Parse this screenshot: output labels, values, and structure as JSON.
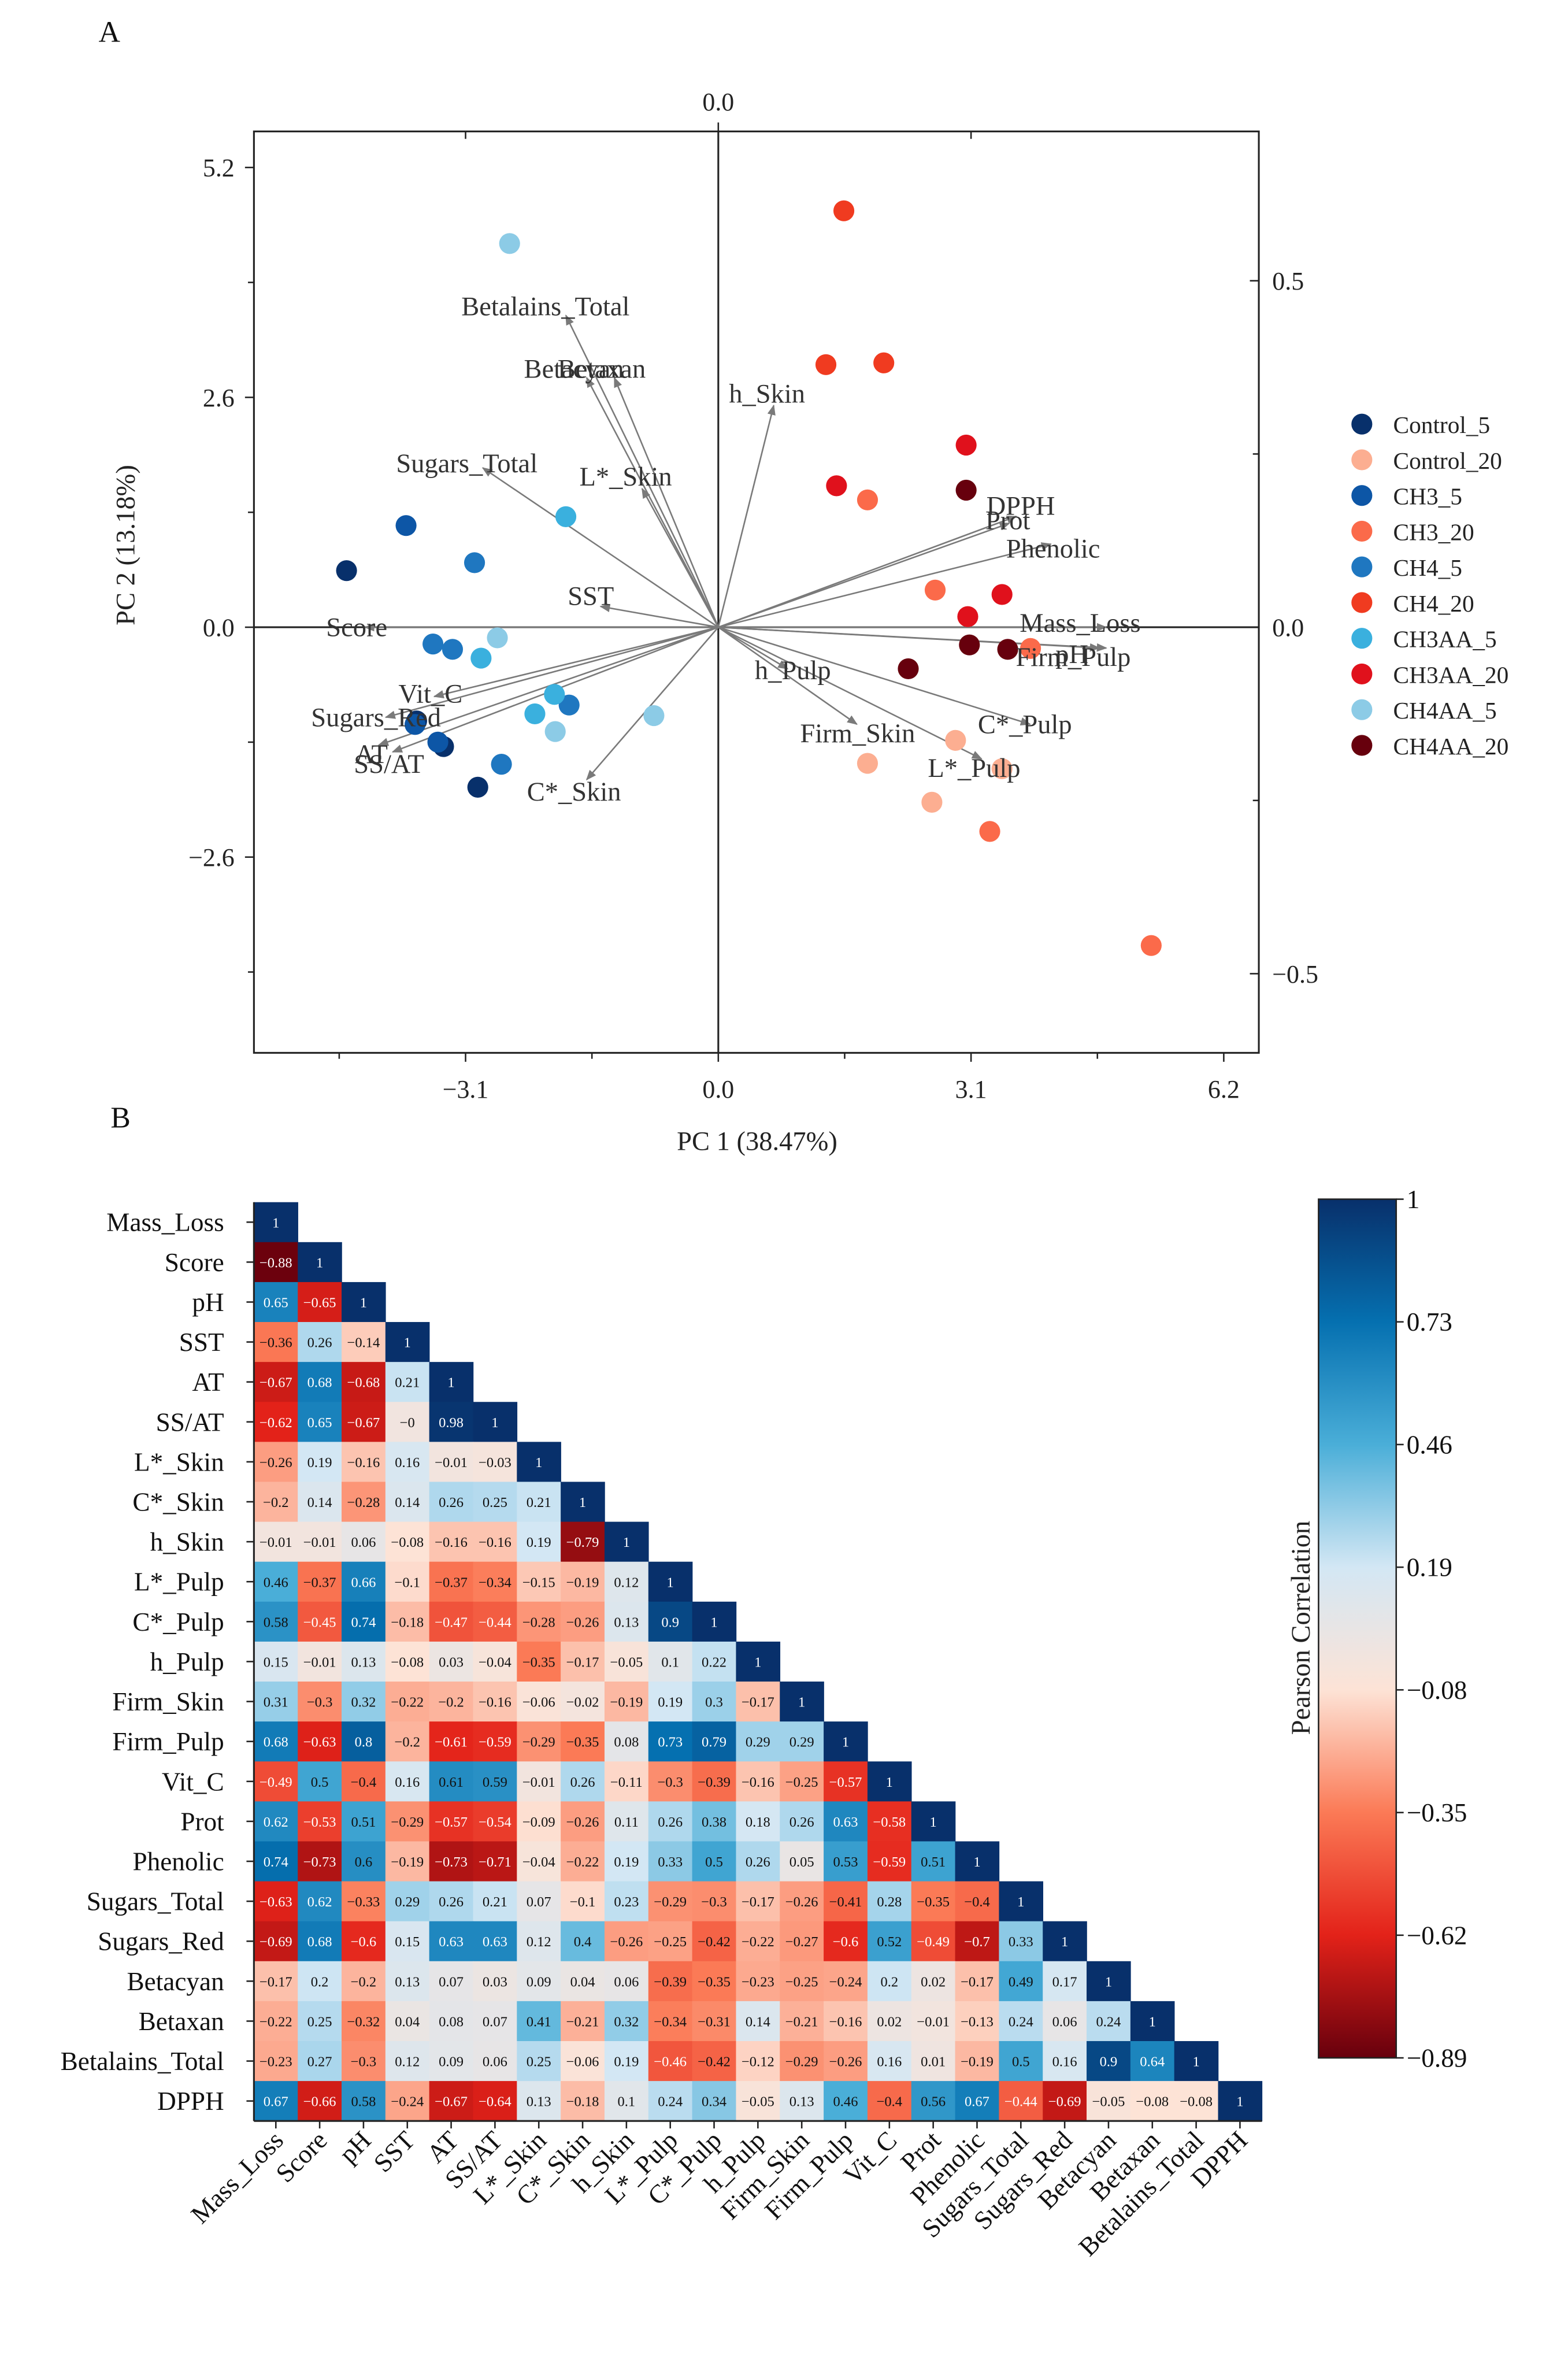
{
  "panel_a_label": "A",
  "panel_b_label": "B",
  "chart_data": [
    {
      "type": "scatter",
      "subtype": "pca-biplot",
      "xlabel": "PC 1 (38.47%)",
      "ylabel": "PC 2 (13.18%)",
      "xlim": [
        -5.7,
        6.6
      ],
      "ylim": [
        -4.85,
        5.6
      ],
      "x_ticks": [
        "-3.1",
        "0.0",
        "3.1",
        "6.2"
      ],
      "x_tick_values": [
        -3.1,
        0,
        3.1,
        6.2
      ],
      "y_ticks": [
        "5.2",
        "2.6",
        "0.0",
        "−2.6"
      ],
      "y_tick_values": [
        5.2,
        2.6,
        0,
        -2.6
      ],
      "top_ticks": [
        "0.0"
      ],
      "right_ticks": [
        "0.5",
        "0.0",
        "−0.5"
      ],
      "right_tick_values": [
        0.5,
        0,
        -0.5
      ],
      "legend_position": "right",
      "groups": [
        {
          "name": "Control_5",
          "color": "#08306b",
          "points": [
            [
              -4.56,
              0.64
            ],
            [
              -2.95,
              -1.81
            ],
            [
              -3.37,
              -1.35
            ],
            [
              -3.7,
              -1.06
            ]
          ]
        },
        {
          "name": "Control_20",
          "color": "#fcae91",
          "points": [
            [
              1.83,
              -1.54
            ],
            [
              2.62,
              -1.98
            ],
            [
              3.48,
              -1.6
            ],
            [
              2.91,
              -1.28
            ]
          ]
        },
        {
          "name": "CH3_5",
          "color": "#0d56a6",
          "points": [
            [
              -3.83,
              1.15
            ],
            [
              -3.72,
              -1.1
            ],
            [
              -3.44,
              -1.3
            ]
          ]
        },
        {
          "name": "CH3_20",
          "color": "#fb6a4a",
          "points": [
            [
              1.83,
              1.44
            ],
            [
              2.66,
              0.42
            ],
            [
              3.83,
              -0.24
            ],
            [
              3.33,
              -2.31
            ],
            [
              5.31,
              -3.6
            ]
          ]
        },
        {
          "name": "CH4_5",
          "color": "#1f77c0",
          "points": [
            [
              -2.99,
              0.73
            ],
            [
              -3.5,
              -0.19
            ],
            [
              -3.26,
              -0.25
            ],
            [
              -2.66,
              -1.55
            ],
            [
              -1.83,
              -0.88
            ]
          ]
        },
        {
          "name": "CH4_20",
          "color": "#f03b20",
          "points": [
            [
              1.54,
              4.71
            ],
            [
              1.32,
              2.97
            ],
            [
              2.03,
              2.99
            ]
          ]
        },
        {
          "name": "CH3AA_5",
          "color": "#3ab0de",
          "points": [
            [
              -1.87,
              1.25
            ],
            [
              -2.91,
              -0.35
            ],
            [
              -2.25,
              -0.98
            ],
            [
              -2.01,
              -0.76
            ]
          ]
        },
        {
          "name": "CH3AA_20",
          "color": "#e0111c",
          "points": [
            [
              3.04,
              2.06
            ],
            [
              1.45,
              1.6
            ],
            [
              3.06,
              0.12
            ],
            [
              3.48,
              0.37
            ]
          ]
        },
        {
          "name": "CH4AA_5",
          "color": "#8ccbe6",
          "points": [
            [
              -2.56,
              4.34
            ],
            [
              -2.71,
              -0.12
            ],
            [
              -2.0,
              -1.18
            ],
            [
              -0.79,
              -1.0
            ]
          ]
        },
        {
          "name": "CH4AA_20",
          "color": "#67000d",
          "points": [
            [
              3.04,
              1.55
            ],
            [
              2.33,
              -0.47
            ],
            [
              3.08,
              -0.2
            ],
            [
              3.55,
              -0.25
            ]
          ]
        }
      ],
      "loadings": [
        {
          "name": "Betalains_Total",
          "x": -0.22,
          "y": 0.45
        },
        {
          "name": "Betacyan",
          "x": -0.19,
          "y": 0.36
        },
        {
          "name": "Betaxan",
          "x": -0.15,
          "y": 0.36
        },
        {
          "name": "h_Skin",
          "x": 0.08,
          "y": 0.32
        },
        {
          "name": "Sugars_Total",
          "x": -0.34,
          "y": 0.23
        },
        {
          "name": "L*_Skin",
          "x": -0.11,
          "y": 0.2
        },
        {
          "name": "SST",
          "x": -0.17,
          "y": 0.03
        },
        {
          "name": "Score",
          "x": -0.51,
          "y": 0.0
        },
        {
          "name": "Vit_C",
          "x": -0.41,
          "y": -0.1
        },
        {
          "name": "Sugars_Red",
          "x": -0.48,
          "y": -0.13
        },
        {
          "name": "AT",
          "x": -0.49,
          "y": -0.17
        },
        {
          "name": "SS/AT",
          "x": -0.47,
          "y": -0.18
        },
        {
          "name": "C*_Skin",
          "x": -0.19,
          "y": -0.22
        },
        {
          "name": "h_Pulp",
          "x": 0.1,
          "y": -0.06
        },
        {
          "name": "Firm_Skin",
          "x": 0.2,
          "y": -0.14
        },
        {
          "name": "L*_Pulp",
          "x": 0.38,
          "y": -0.19
        },
        {
          "name": "C*_Pulp",
          "x": 0.45,
          "y": -0.14
        },
        {
          "name": "DPPH",
          "x": 0.43,
          "y": 0.16
        },
        {
          "name": "Prot",
          "x": 0.42,
          "y": 0.15
        },
        {
          "name": "Phenolic",
          "x": 0.48,
          "y": 0.12
        },
        {
          "name": "Mass_Loss",
          "x": 0.56,
          "y": 0.0
        },
        {
          "name": "Firm_Pulp",
          "x": 0.55,
          "y": -0.03
        },
        {
          "name": "pH",
          "x": 0.56,
          "y": -0.03
        }
      ]
    },
    {
      "type": "heatmap",
      "subtype": "lower-triangle correlation matrix",
      "colorbar_label": "Pearson Correlation",
      "colorbar_ticks": [
        "1",
        "0.73",
        "0.46",
        "0.19",
        "−0.08",
        "−0.35",
        "−0.62",
        "−0.89"
      ],
      "colorbar_range": [
        -0.89,
        1
      ],
      "colorscale": [
        "#67000d",
        "#e32219",
        "#fb7a56",
        "#fde3d6",
        "#d3e7f4",
        "#4aaed8",
        "#0570b0",
        "#08306b"
      ],
      "variables": [
        "Mass_Loss",
        "Score",
        "pH",
        "SST",
        "AT",
        "SS/AT",
        "L*_Skin",
        "C*_Skin",
        "h_Skin",
        "L*_Pulp",
        "C*_Pulp",
        "h_Pulp",
        "Firm_Skin",
        "Firm_Pulp",
        "Vit_C",
        "Prot",
        "Phenolic",
        "Sugars_Total",
        "Sugars_Red",
        "Betacyan",
        "Betaxan",
        "Betalains_Total",
        "DPPH"
      ],
      "matrix": [
        [
          1
        ],
        [
          -0.88,
          1
        ],
        [
          0.65,
          -0.65,
          1
        ],
        [
          -0.36,
          0.26,
          -0.14,
          1
        ],
        [
          -0.67,
          0.68,
          -0.68,
          0.21,
          1
        ],
        [
          -0.62,
          0.65,
          -0.67,
          0,
          0.98,
          1
        ],
        [
          -0.26,
          0.19,
          -0.16,
          0.16,
          -0.01,
          -0.03,
          1
        ],
        [
          -0.2,
          0.14,
          -0.28,
          0.14,
          0.26,
          0.25,
          0.21,
          1
        ],
        [
          -0.01,
          -0.01,
          0.06,
          -0.08,
          -0.16,
          -0.16,
          0.19,
          -0.79,
          1
        ],
        [
          0.46,
          -0.37,
          0.66,
          -0.1,
          -0.37,
          -0.34,
          -0.15,
          -0.19,
          0.12,
          1
        ],
        [
          0.58,
          -0.45,
          0.74,
          -0.18,
          -0.47,
          -0.44,
          -0.28,
          -0.26,
          0.13,
          0.9,
          1
        ],
        [
          0.15,
          -0.01,
          0.13,
          -0.08,
          0.03,
          -0.04,
          -0.35,
          -0.17,
          -0.05,
          0.1,
          0.22,
          1
        ],
        [
          0.31,
          -0.3,
          0.32,
          -0.22,
          -0.2,
          -0.16,
          -0.06,
          -0.02,
          -0.19,
          0.19,
          0.3,
          -0.17,
          1
        ],
        [
          0.68,
          -0.63,
          0.8,
          -0.2,
          -0.61,
          -0.59,
          -0.29,
          -0.35,
          0.08,
          0.73,
          0.79,
          0.29,
          0.29,
          1
        ],
        [
          -0.49,
          0.5,
          -0.4,
          0.16,
          0.61,
          0.59,
          -0.01,
          0.26,
          -0.11,
          -0.3,
          -0.39,
          -0.16,
          -0.25,
          -0.57,
          1
        ],
        [
          0.62,
          -0.53,
          0.51,
          -0.29,
          -0.57,
          -0.54,
          -0.09,
          -0.26,
          0.11,
          0.26,
          0.38,
          0.18,
          0.26,
          0.63,
          -0.58,
          1
        ],
        [
          0.74,
          -0.73,
          0.6,
          -0.19,
          -0.73,
          -0.71,
          -0.04,
          -0.22,
          0.19,
          0.33,
          0.5,
          0.26,
          0.05,
          0.53,
          -0.59,
          0.51,
          1
        ],
        [
          -0.63,
          0.62,
          -0.33,
          0.29,
          0.26,
          0.21,
          0.07,
          -0.1,
          0.23,
          -0.29,
          -0.3,
          -0.17,
          -0.26,
          -0.41,
          0.28,
          -0.35,
          -0.4,
          1
        ],
        [
          -0.69,
          0.68,
          -0.6,
          0.15,
          0.63,
          0.63,
          0.12,
          0.4,
          -0.26,
          -0.25,
          -0.42,
          -0.22,
          -0.27,
          -0.6,
          0.52,
          -0.49,
          -0.7,
          0.33,
          1
        ],
        [
          -0.17,
          0.2,
          -0.2,
          0.13,
          0.07,
          0.03,
          0.09,
          0.04,
          0.06,
          -0.39,
          -0.35,
          -0.23,
          -0.25,
          -0.24,
          0.2,
          0.02,
          -0.17,
          0.49,
          0.17,
          1
        ],
        [
          -0.22,
          0.25,
          -0.32,
          0.04,
          0.08,
          0.07,
          0.41,
          -0.21,
          0.32,
          -0.34,
          -0.31,
          0.14,
          -0.21,
          -0.16,
          0.02,
          -0.01,
          -0.13,
          0.24,
          0.06,
          0.24,
          1
        ],
        [
          -0.23,
          0.27,
          -0.3,
          0.12,
          0.09,
          0.06,
          0.25,
          -0.06,
          0.19,
          -0.46,
          -0.42,
          -0.12,
          -0.29,
          -0.26,
          0.16,
          0.01,
          -0.19,
          0.5,
          0.16,
          0.9,
          0.64,
          1
        ],
        [
          0.67,
          -0.66,
          0.58,
          -0.24,
          -0.67,
          -0.64,
          0.13,
          -0.18,
          0.1,
          0.24,
          0.34,
          -0.05,
          0.13,
          0.46,
          -0.4,
          0.56,
          0.67,
          -0.44,
          -0.69,
          -0.05,
          -0.08,
          -0.08,
          1
        ]
      ]
    }
  ]
}
